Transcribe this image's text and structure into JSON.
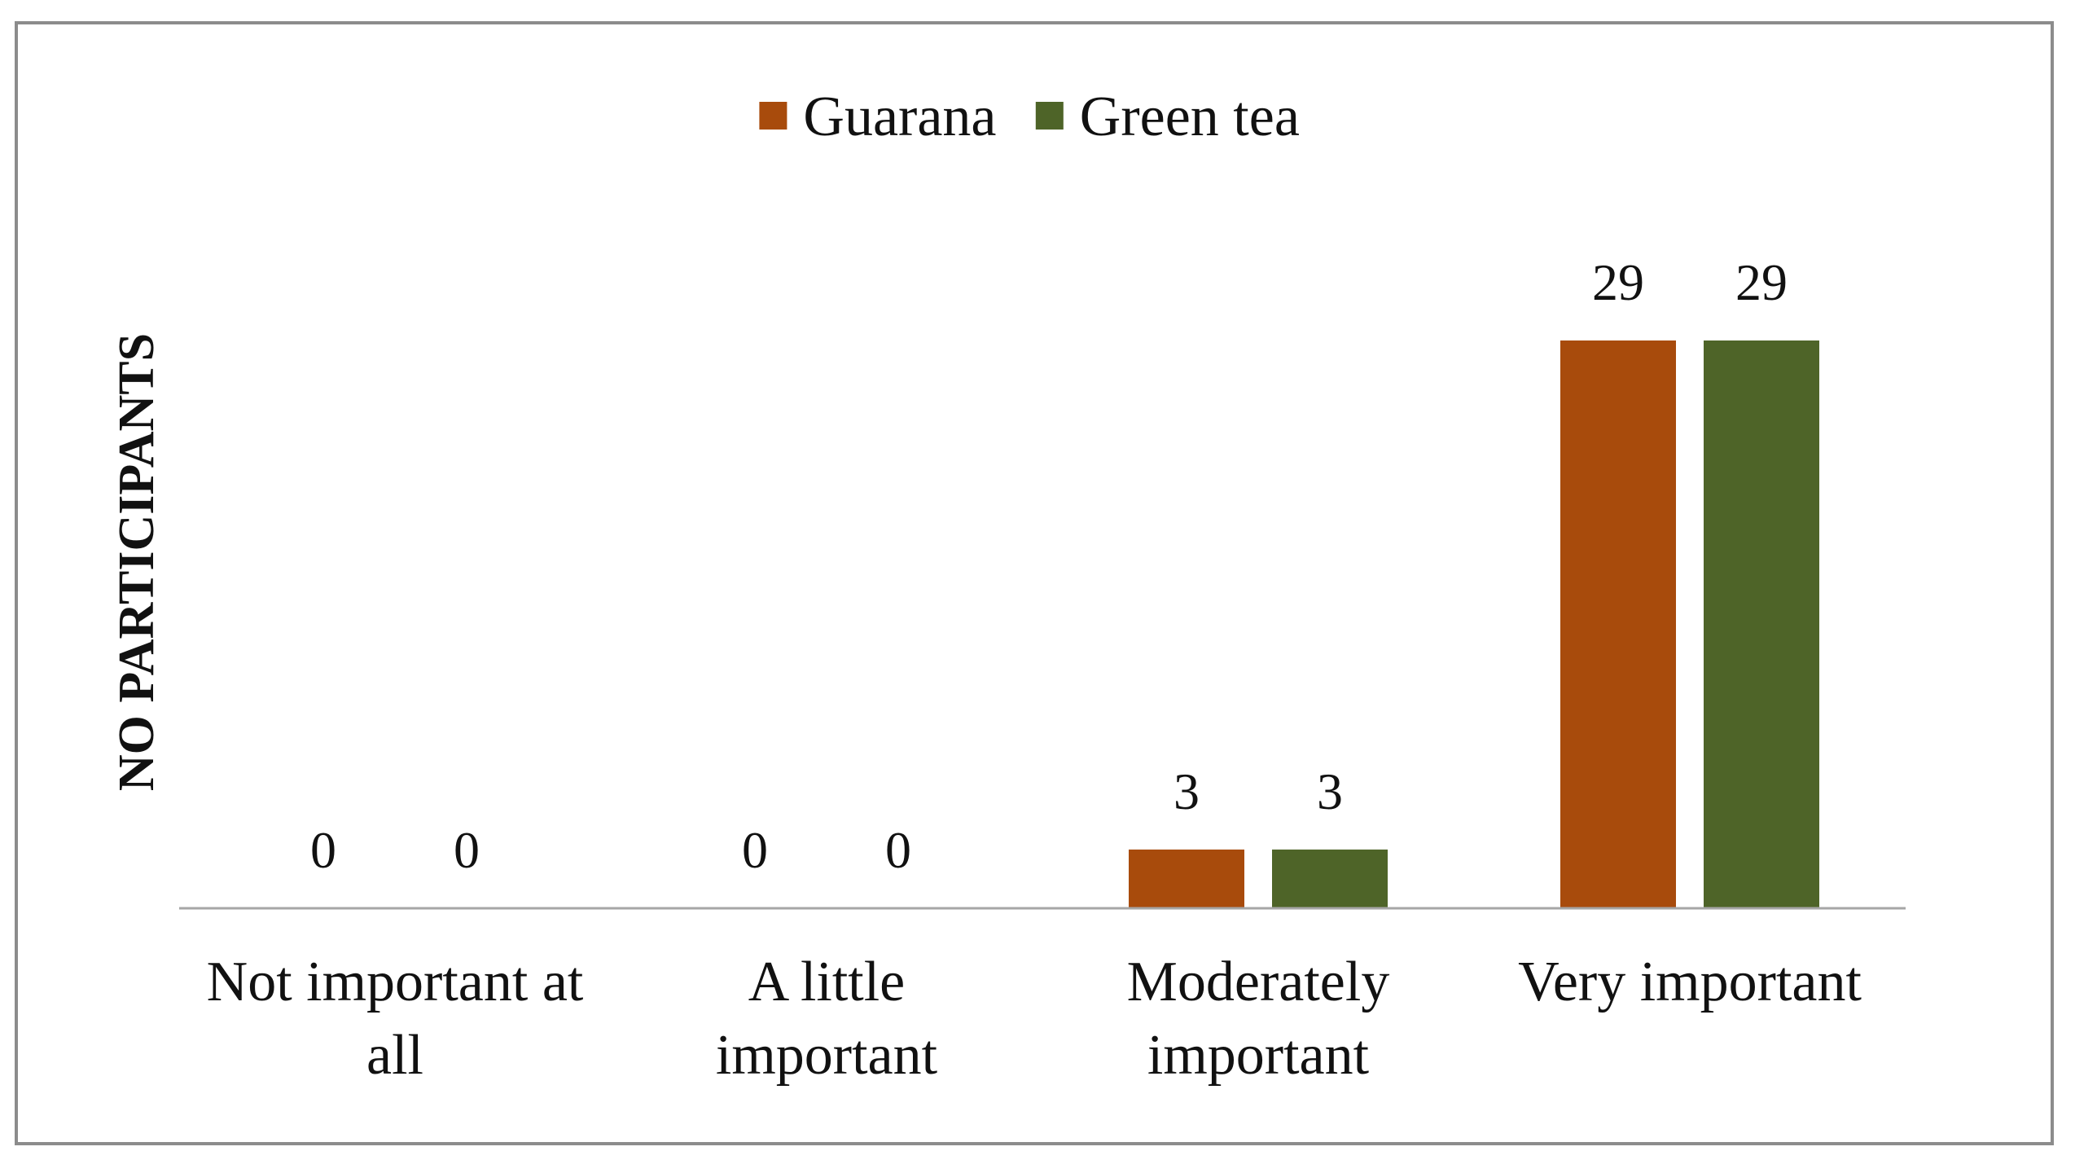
{
  "chart_data": {
    "type": "bar",
    "categories": [
      [
        "Not important at",
        "all"
      ],
      [
        "A little",
        "important"
      ],
      [
        "Moderately",
        "important"
      ],
      [
        "Very important"
      ]
    ],
    "series": [
      {
        "name": "Guarana",
        "color": "#a84b0c",
        "values": [
          0,
          0,
          3,
          29
        ]
      },
      {
        "name": "Green tea",
        "color": "#4e6428",
        "values": [
          0,
          0,
          3,
          29
        ]
      }
    ],
    "ylabel": "NO PARTICIPANTS",
    "xlabel": "",
    "ylim": [
      0,
      29
    ],
    "grid": false,
    "legend_position": "top-center",
    "data_labels": true
  }
}
